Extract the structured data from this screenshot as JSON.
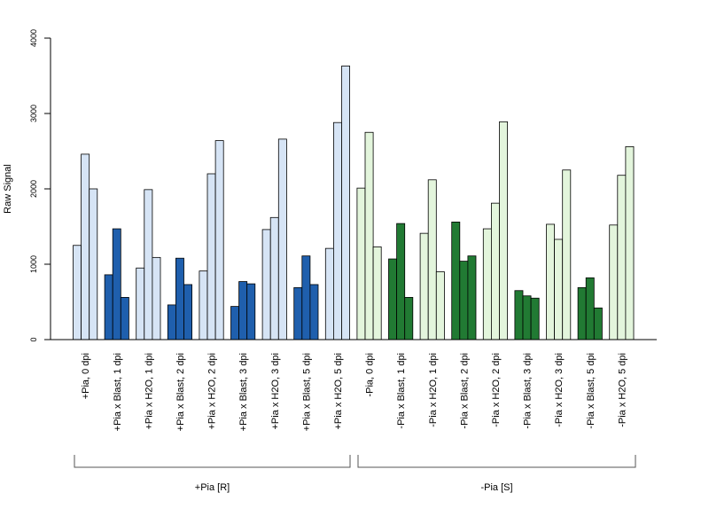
{
  "chart_data": {
    "type": "bar",
    "ylabel": "Raw Signal",
    "ylim": [
      0,
      4000
    ],
    "yticks": [
      0,
      1000,
      2000,
      3000,
      4000
    ],
    "grid": false,
    "legend": "none",
    "categories": [
      "+Pia, 0 dpi",
      "+Pia x Blast, 1 dpi",
      "+Pia x H2O, 1 dpi",
      "+Pia x Blast, 2 dpi",
      "+Pia x H2O, 2 dpi",
      "+Pia x Blast, 3 dpi",
      "+Pia x H2O, 3 dpi",
      "+Pia x Blast, 5 dpi",
      "+Pia x H2O, 5 dpi",
      "-Pia, 0 dpi",
      "-Pia x Blast, 1 dpi",
      "-Pia x H2O, 1 dpi",
      "-Pia x Blast, 2 dpi",
      "-Pia x H2O, 2 dpi",
      "-Pia x Blast, 3 dpi",
      "-Pia x H2O, 3 dpi",
      "-Pia x Blast, 5 dpi",
      "-Pia x H2O, 5 dpi"
    ],
    "replicates_per_category": 3,
    "values": [
      [
        1250,
        2460,
        2000
      ],
      [
        860,
        1470,
        560
      ],
      [
        950,
        1990,
        1090
      ],
      [
        460,
        1080,
        730
      ],
      [
        910,
        2200,
        2640
      ],
      [
        440,
        770,
        740
      ],
      [
        1460,
        1620,
        2660
      ],
      [
        690,
        1110,
        730
      ],
      [
        1210,
        2880,
        3630
      ],
      [
        2010,
        2750,
        1230
      ],
      [
        1070,
        1540,
        560
      ],
      [
        1410,
        2120,
        900
      ],
      [
        1560,
        1040,
        1110
      ],
      [
        1470,
        1810,
        2890
      ],
      [
        650,
        580,
        550
      ],
      [
        1530,
        1330,
        2250
      ],
      [
        690,
        820,
        420
      ],
      [
        1520,
        2180,
        2560
      ]
    ],
    "bar_colors": [
      "#d6e4f5",
      "#1f5fad",
      "#d6e4f5",
      "#1f5fad",
      "#d6e4f5",
      "#1f5fad",
      "#d6e4f5",
      "#1f5fad",
      "#d6e4f5",
      "#e3f5dc",
      "#217a33",
      "#e3f5dc",
      "#217a33",
      "#e3f5dc",
      "#217a33",
      "#e3f5dc",
      "#217a33",
      "#e3f5dc"
    ],
    "groups": [
      {
        "label": "+Pia [R]",
        "start": 0,
        "end": 8
      },
      {
        "label": "-Pia [S]",
        "start": 9,
        "end": 17
      }
    ]
  }
}
